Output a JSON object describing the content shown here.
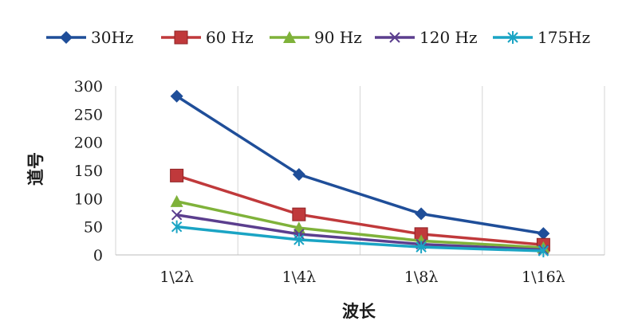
{
  "chart_data": {
    "type": "line",
    "title": "",
    "xlabel": "波长",
    "ylabel": "道号",
    "categories": [
      "1\\2λ",
      "1\\4λ",
      "1\\8λ",
      "1\\16λ"
    ],
    "ylim": [
      0,
      300
    ],
    "yticks": [
      0,
      50,
      100,
      150,
      200,
      250,
      300
    ],
    "grid": "vertical",
    "legend_position": "top",
    "series": [
      {
        "name": "30Hz",
        "color": "#1f4e99",
        "marker": "diamond",
        "values": [
          282,
          143,
          73,
          38
        ]
      },
      {
        "name": "60 Hz",
        "color": "#c0393b",
        "marker": "square",
        "values": [
          141,
          72,
          37,
          18
        ]
      },
      {
        "name": "90 Hz",
        "color": "#7fb23a",
        "marker": "triangle",
        "values": [
          95,
          48,
          25,
          13
        ]
      },
      {
        "name": "120 Hz",
        "color": "#5b3e8e",
        "marker": "x",
        "values": [
          71,
          37,
          19,
          9
        ]
      },
      {
        "name": "175Hz",
        "color": "#1aa4c4",
        "marker": "star",
        "values": [
          50,
          27,
          14,
          7
        ]
      }
    ]
  }
}
